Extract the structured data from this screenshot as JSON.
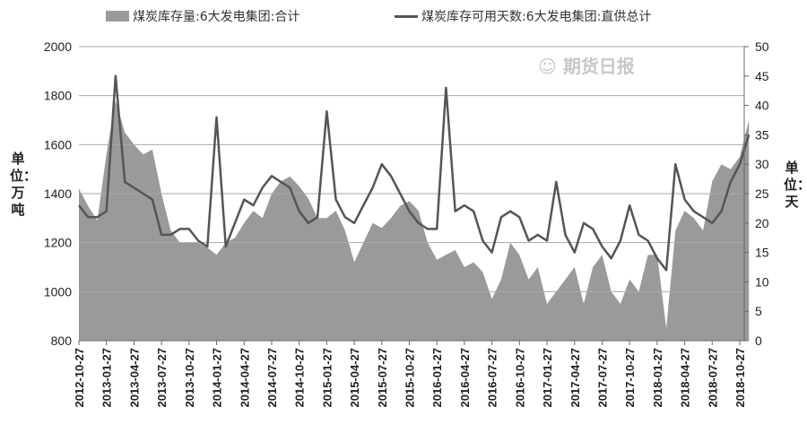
{
  "chart_data": {
    "type": "area+line",
    "legend": [
      {
        "name": "煤炭库存量:6大发电集团:合计",
        "type": "area",
        "axis": "left"
      },
      {
        "name": "煤炭库存可用天数:6大发电集团:直供总计",
        "type": "line",
        "axis": "right"
      }
    ],
    "legend_position": "top",
    "left_axis": {
      "label": "单位：万吨",
      "ylim": [
        800,
        2000
      ],
      "ticks": [
        800,
        1000,
        1200,
        1400,
        1600,
        1800,
        2000
      ]
    },
    "right_axis": {
      "label": "单位：天",
      "ylim": [
        0,
        50
      ],
      "ticks": [
        0,
        5,
        10,
        15,
        20,
        25,
        30,
        35,
        40,
        45,
        50
      ]
    },
    "x_tick_labels": [
      "2012-10-27",
      "2013-01-27",
      "2013-04-27",
      "2013-07-27",
      "2013-10-27",
      "2014-01-27",
      "2014-04-27",
      "2014-07-27",
      "2014-10-27",
      "2015-01-27",
      "2015-04-27",
      "2015-07-27",
      "2015-10-27",
      "2016-01-27",
      "2016-04-27",
      "2016-07-27",
      "2016-10-27",
      "2017-01-27",
      "2017-04-27",
      "2017-07-27",
      "2017-10-27",
      "2018-01-27",
      "2018-04-27",
      "2018-07-27",
      "2018-10-27"
    ],
    "x_unit": "months since 2012-10-27",
    "inventory": [
      1420,
      1350,
      1290,
      1560,
      1780,
      1650,
      1600,
      1560,
      1580,
      1400,
      1250,
      1200,
      1200,
      1200,
      1180,
      1150,
      1200,
      1220,
      1280,
      1330,
      1300,
      1400,
      1450,
      1470,
      1430,
      1380,
      1300,
      1300,
      1330,
      1250,
      1120,
      1200,
      1280,
      1260,
      1300,
      1350,
      1370,
      1330,
      1200,
      1130,
      1150,
      1170,
      1100,
      1120,
      1080,
      970,
      1050,
      1200,
      1150,
      1050,
      1100,
      950,
      1000,
      1050,
      1100,
      950,
      1100,
      1150,
      1000,
      950,
      1050,
      1000,
      1150,
      1150,
      850,
      1250,
      1330,
      1300,
      1250,
      1450,
      1520,
      1500,
      1550,
      1700
    ],
    "days": [
      23,
      21,
      21,
      22,
      45,
      27,
      26,
      25,
      24,
      18,
      18,
      19,
      19,
      17,
      16,
      38,
      16,
      20,
      24,
      23,
      26,
      28,
      27,
      26,
      22,
      20,
      21,
      39,
      24,
      21,
      20,
      23,
      26,
      30,
      28,
      25,
      22,
      20,
      19,
      19,
      43,
      22,
      23,
      22,
      17,
      15,
      21,
      22,
      21,
      17,
      18,
      17,
      27,
      18,
      15,
      20,
      19,
      16,
      14,
      17,
      23,
      18,
      17,
      14,
      12,
      30,
      24,
      22,
      21,
      20,
      22,
      27,
      30,
      35
    ],
    "grid": "horizontal",
    "colors": {
      "area": "#9a9a9a",
      "line": "#555555"
    }
  },
  "watermark": "期货日报"
}
